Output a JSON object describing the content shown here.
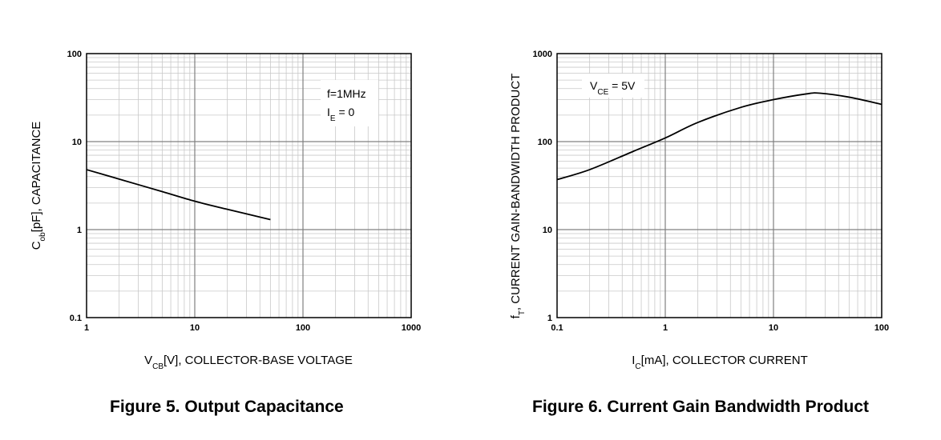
{
  "figures": [
    {
      "caption": "Figure 5. Output Capacitance",
      "xlabel": {
        "main": "V",
        "sub": "CB",
        "rest": "[V], COLLECTOR-BASE VOLTAGE"
      },
      "ylabel": {
        "main": "C",
        "sub": "ob",
        "rest": "[pF], CAPACITANCE"
      },
      "annotation": [
        {
          "main": "f=1MHz",
          "sub": "",
          "rest": ""
        },
        {
          "main": "I",
          "sub": "E",
          "rest": " = 0"
        }
      ]
    },
    {
      "caption": "Figure 6. Current Gain Bandwidth Product",
      "xlabel": {
        "main": "I",
        "sub": "C",
        "rest": "[mA], COLLECTOR CURRENT"
      },
      "ylabel": {
        "main": "f",
        "sub": "T",
        "rest": ", CURRENT GAIN-BANDWIDTH PRODUCT"
      },
      "annotation": [
        {
          "main": "V",
          "sub": "CE",
          "rest": " = 5V"
        }
      ]
    }
  ],
  "chart_data": [
    {
      "type": "line",
      "title": "Figure 5. Output Capacitance",
      "xlabel": "VCB[V], COLLECTOR-BASE VOLTAGE",
      "ylabel": "Cob[pF], CAPACITANCE",
      "x_scale": "log",
      "y_scale": "log",
      "xlim": [
        1,
        1000
      ],
      "ylim": [
        0.1,
        100
      ],
      "x_ticks": [
        "1",
        "10",
        "100",
        "1000"
      ],
      "y_ticks": [
        "0.1",
        "1",
        "10",
        "100"
      ],
      "grid": true,
      "series": [
        {
          "x": [
            1,
            2,
            5,
            10,
            20,
            50
          ],
          "y": [
            4.8,
            3.75,
            2.7,
            2.1,
            1.7,
            1.3
          ]
        }
      ]
    },
    {
      "type": "line",
      "title": "Figure 6. Current Gain Bandwidth Product",
      "xlabel": "IC[mA], COLLECTOR CURRENT",
      "ylabel": "fT, CURRENT GAIN-BANDWIDTH PRODUCT",
      "x_scale": "log",
      "y_scale": "log",
      "xlim": [
        0.1,
        100
      ],
      "ylim": [
        1,
        1000
      ],
      "x_ticks": [
        "0.1",
        "1",
        "10",
        "100"
      ],
      "y_ticks": [
        "1",
        "10",
        "100",
        "1000"
      ],
      "grid": true,
      "series": [
        {
          "x": [
            0.1,
            0.2,
            0.5,
            1,
            2,
            5,
            10,
            20,
            27,
            50,
            100
          ],
          "y": [
            37,
            48,
            77,
            110,
            165,
            245,
            300,
            348,
            355,
            320,
            265
          ]
        }
      ]
    }
  ]
}
